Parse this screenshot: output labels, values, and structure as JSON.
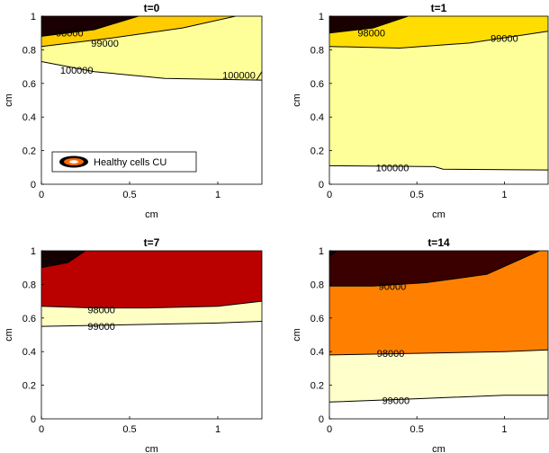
{
  "chart_data": [
    {
      "type": "contour",
      "title": "t=0",
      "xlabel": "cm",
      "ylabel": "cm",
      "xlim": [
        0,
        1.25
      ],
      "ylim": [
        0,
        1
      ],
      "xticks": [
        "0",
        "0.5",
        "1"
      ],
      "yticks": [
        "0",
        "0.2",
        "0.4",
        "0.6",
        "0.8",
        "1"
      ],
      "legend": "Healthy cells CU",
      "legend_position": "bottom-left",
      "contour_labels": [
        "98000",
        "99000",
        "100000",
        "100000"
      ],
      "regions": [
        {
          "color": "#ffff99",
          "points": [
            [
              0,
              0.73
            ],
            [
              0.1,
              0.71
            ],
            [
              0.3,
              0.67
            ],
            [
              0.7,
              0.63
            ],
            [
              1.25,
              0.62
            ],
            [
              1.25,
              1
            ],
            [
              0,
              1
            ]
          ]
        },
        {
          "color": "#ffcc00",
          "points": [
            [
              0,
              0.82
            ],
            [
              0.4,
              0.87
            ],
            [
              0.8,
              0.93
            ],
            [
              1.1,
              1.0
            ],
            [
              0,
              1
            ]
          ]
        },
        {
          "color": "#1a0000",
          "points": [
            [
              0,
              0.88
            ],
            [
              0.3,
              0.92
            ],
            [
              0.55,
              1.0
            ],
            [
              0,
              1
            ]
          ]
        }
      ],
      "lines": [
        [
          [
            0,
            0.88
          ],
          [
            0.3,
            0.92
          ],
          [
            0.55,
            1.0
          ]
        ],
        [
          [
            0,
            0.82
          ],
          [
            0.4,
            0.87
          ],
          [
            0.8,
            0.93
          ],
          [
            1.1,
            1.0
          ]
        ],
        [
          [
            0,
            0.73
          ],
          [
            0.1,
            0.71
          ],
          [
            0.3,
            0.67
          ],
          [
            0.7,
            0.63
          ],
          [
            1.25,
            0.62
          ]
        ],
        [
          [
            1.22,
            0.62
          ],
          [
            1.25,
            0.67
          ]
        ]
      ],
      "label_positions": [
        [
          0.16,
          0.9
        ],
        [
          0.36,
          0.84
        ],
        [
          0.2,
          0.68
        ],
        [
          1.12,
          0.65
        ]
      ]
    },
    {
      "type": "contour",
      "title": "t=1",
      "xlabel": "cm",
      "ylabel": "cm",
      "xlim": [
        0,
        1.25
      ],
      "ylim": [
        0,
        1
      ],
      "xticks": [
        "0",
        "0.5",
        "1"
      ],
      "yticks": [
        "0",
        "0.2",
        "0.4",
        "0.6",
        "0.8",
        "1"
      ],
      "contour_labels": [
        "98000",
        "99000",
        "100000"
      ],
      "regions": [
        {
          "color": "#ffff99",
          "points": [
            [
              0,
              0.11
            ],
            [
              0.6,
              0.105
            ],
            [
              0.65,
              0.09
            ],
            [
              1.25,
              0.085
            ],
            [
              1.25,
              1
            ],
            [
              0,
              1
            ]
          ]
        },
        {
          "color": "#ffdd00",
          "points": [
            [
              0,
              0.82
            ],
            [
              0.4,
              0.81
            ],
            [
              0.8,
              0.84
            ],
            [
              1.25,
              0.91
            ],
            [
              1.25,
              1
            ],
            [
              0,
              1
            ]
          ]
        },
        {
          "color": "#1a0000",
          "points": [
            [
              0,
              0.9
            ],
            [
              0.25,
              0.93
            ],
            [
              0.45,
              1.0
            ],
            [
              0,
              1
            ]
          ]
        }
      ],
      "lines": [
        [
          [
            0,
            0.9
          ],
          [
            0.25,
            0.93
          ],
          [
            0.45,
            1.0
          ]
        ],
        [
          [
            0,
            0.82
          ],
          [
            0.4,
            0.81
          ],
          [
            0.8,
            0.84
          ],
          [
            1.25,
            0.91
          ]
        ],
        [
          [
            0,
            0.11
          ],
          [
            0.6,
            0.105
          ],
          [
            0.65,
            0.09
          ],
          [
            1.25,
            0.085
          ]
        ]
      ],
      "label_positions": [
        [
          0.24,
          0.9
        ],
        [
          1.0,
          0.87
        ],
        [
          0.36,
          0.1
        ]
      ]
    },
    {
      "type": "contour",
      "title": "t=7",
      "xlabel": "cm",
      "ylabel": "cm",
      "xlim": [
        0,
        1.25
      ],
      "ylim": [
        0,
        1
      ],
      "xticks": [
        "0",
        "0.5",
        "1"
      ],
      "yticks": [
        "0",
        "0.2",
        "0.4",
        "0.6",
        "0.8",
        "1"
      ],
      "contour_labels": [
        "98000",
        "99000"
      ],
      "regions": [
        {
          "color": "#ffffc4",
          "points": [
            [
              0,
              0.55
            ],
            [
              0.5,
              0.56
            ],
            [
              1.0,
              0.57
            ],
            [
              1.25,
              0.58
            ],
            [
              1.25,
              1
            ],
            [
              0,
              1
            ]
          ]
        },
        {
          "color": "#bb0000",
          "points": [
            [
              0,
              0.67
            ],
            [
              0.3,
              0.66
            ],
            [
              0.6,
              0.66
            ],
            [
              1.0,
              0.67
            ],
            [
              1.25,
              0.7
            ],
            [
              1.25,
              1
            ],
            [
              0,
              1
            ]
          ]
        },
        {
          "color": "#140000",
          "points": [
            [
              0,
              0.9
            ],
            [
              0.15,
              0.93
            ],
            [
              0.25,
              1.0
            ],
            [
              0,
              1
            ]
          ]
        }
      ],
      "lines": [
        [
          [
            0,
            0.9
          ],
          [
            0.15,
            0.93
          ],
          [
            0.25,
            1.0
          ]
        ],
        [
          [
            0,
            0.67
          ],
          [
            0.3,
            0.66
          ],
          [
            0.6,
            0.66
          ],
          [
            1.0,
            0.67
          ],
          [
            1.25,
            0.7
          ]
        ],
        [
          [
            0,
            0.55
          ],
          [
            0.5,
            0.56
          ],
          [
            1.0,
            0.57
          ],
          [
            1.25,
            0.58
          ]
        ]
      ],
      "label_positions": [
        [
          0.34,
          0.65
        ],
        [
          0.34,
          0.55
        ]
      ]
    },
    {
      "type": "contour",
      "title": "t=14",
      "xlabel": "cm",
      "ylabel": "cm",
      "xlim": [
        0,
        1.25
      ],
      "ylim": [
        0,
        1
      ],
      "xticks": [
        "0",
        "0.5",
        "1"
      ],
      "yticks": [
        "0",
        "0.2",
        "0.4",
        "0.6",
        "0.8",
        "1"
      ],
      "contour_labels": [
        "90000",
        "98000",
        "99000"
      ],
      "regions": [
        {
          "color": "#ffffcc",
          "points": [
            [
              0,
              0.1
            ],
            [
              0.5,
              0.12
            ],
            [
              1.0,
              0.14
            ],
            [
              1.25,
              0.14
            ],
            [
              1.25,
              1
            ],
            [
              0,
              1
            ]
          ]
        },
        {
          "color": "#ff8000",
          "points": [
            [
              0,
              0.38
            ],
            [
              0.5,
              0.39
            ],
            [
              1.0,
              0.4
            ],
            [
              1.25,
              0.41
            ],
            [
              1.25,
              1
            ],
            [
              0,
              1
            ]
          ]
        },
        {
          "color": "#3a0000",
          "points": [
            [
              0,
              0.79
            ],
            [
              0.25,
              0.79
            ],
            [
              0.55,
              0.81
            ],
            [
              0.9,
              0.86
            ],
            [
              1.2,
              1.0
            ],
            [
              0,
              1
            ]
          ]
        },
        {
          "color": "#0d0000",
          "points": [
            [
              0,
              0.96
            ],
            [
              0.05,
              1.0
            ],
            [
              0,
              1
            ]
          ]
        }
      ],
      "lines": [
        [
          [
            0,
            0.79
          ],
          [
            0.25,
            0.79
          ],
          [
            0.55,
            0.81
          ],
          [
            0.9,
            0.86
          ],
          [
            1.2,
            1.0
          ]
        ],
        [
          [
            0,
            0.38
          ],
          [
            0.5,
            0.39
          ],
          [
            1.0,
            0.4
          ],
          [
            1.25,
            0.41
          ]
        ],
        [
          [
            0,
            0.1
          ],
          [
            0.5,
            0.12
          ],
          [
            1.0,
            0.14
          ],
          [
            1.25,
            0.14
          ]
        ]
      ],
      "label_positions": [
        [
          0.36,
          0.79
        ],
        [
          0.35,
          0.39
        ],
        [
          0.38,
          0.11
        ]
      ]
    }
  ]
}
